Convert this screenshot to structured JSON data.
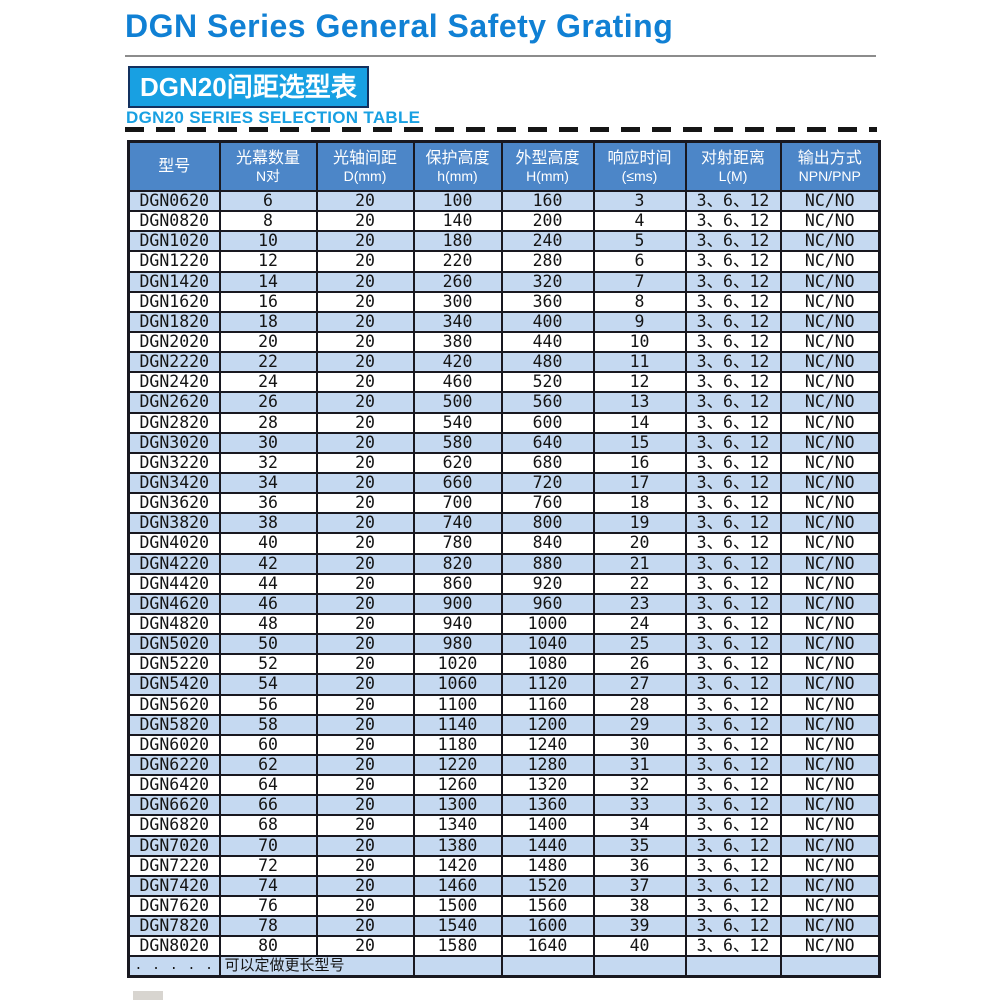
{
  "page": {
    "title": "DGN Series General Safety Grating",
    "section_badge": "DGN20间距选型表",
    "section_subtitle": "DGN20 SERIES SELECTION TABLE"
  },
  "colors": {
    "title_blue": "#1080d4",
    "badge_fill_blue": "#18a0e2",
    "badge_border_navy": "#13315f",
    "subtitle_cyan_blue": "#18a0e2",
    "table_header_blue": "#4c86c8",
    "row_alt_light_blue": "#c5d9f1",
    "border_dark": "#181820"
  },
  "table": {
    "headers": [
      {
        "line1": "型号",
        "line2": ""
      },
      {
        "line1": "光幕数量",
        "line2": "N对"
      },
      {
        "line1": "光轴间距",
        "line2": "D(mm)"
      },
      {
        "line1": "保护高度",
        "line2": "h(mm)"
      },
      {
        "line1": "外型高度",
        "line2": "H(mm)"
      },
      {
        "line1": "响应时间",
        "line2": "(≤ms)"
      },
      {
        "line1": "对射距离",
        "line2": "L(M)"
      },
      {
        "line1": "输出方式",
        "line2": "NPN/PNP"
      }
    ],
    "rows": [
      [
        "DGN0620",
        "6",
        "20",
        "100",
        "160",
        "3",
        "3、6、12",
        "NC/NO"
      ],
      [
        "DGN0820",
        "8",
        "20",
        "140",
        "200",
        "4",
        "3、6、12",
        "NC/NO"
      ],
      [
        "DGN1020",
        "10",
        "20",
        "180",
        "240",
        "5",
        "3、6、12",
        "NC/NO"
      ],
      [
        "DGN1220",
        "12",
        "20",
        "220",
        "280",
        "6",
        "3、6、12",
        "NC/NO"
      ],
      [
        "DGN1420",
        "14",
        "20",
        "260",
        "320",
        "7",
        "3、6、12",
        "NC/NO"
      ],
      [
        "DGN1620",
        "16",
        "20",
        "300",
        "360",
        "8",
        "3、6、12",
        "NC/NO"
      ],
      [
        "DGN1820",
        "18",
        "20",
        "340",
        "400",
        "9",
        "3、6、12",
        "NC/NO"
      ],
      [
        "DGN2020",
        "20",
        "20",
        "380",
        "440",
        "10",
        "3、6、12",
        "NC/NO"
      ],
      [
        "DGN2220",
        "22",
        "20",
        "420",
        "480",
        "11",
        "3、6、12",
        "NC/NO"
      ],
      [
        "DGN2420",
        "24",
        "20",
        "460",
        "520",
        "12",
        "3、6、12",
        "NC/NO"
      ],
      [
        "DGN2620",
        "26",
        "20",
        "500",
        "560",
        "13",
        "3、6、12",
        "NC/NO"
      ],
      [
        "DGN2820",
        "28",
        "20",
        "540",
        "600",
        "14",
        "3、6、12",
        "NC/NO"
      ],
      [
        "DGN3020",
        "30",
        "20",
        "580",
        "640",
        "15",
        "3、6、12",
        "NC/NO"
      ],
      [
        "DGN3220",
        "32",
        "20",
        "620",
        "680",
        "16",
        "3、6、12",
        "NC/NO"
      ],
      [
        "DGN3420",
        "34",
        "20",
        "660",
        "720",
        "17",
        "3、6、12",
        "NC/NO"
      ],
      [
        "DGN3620",
        "36",
        "20",
        "700",
        "760",
        "18",
        "3、6、12",
        "NC/NO"
      ],
      [
        "DGN3820",
        "38",
        "20",
        "740",
        "800",
        "19",
        "3、6、12",
        "NC/NO"
      ],
      [
        "DGN4020",
        "40",
        "20",
        "780",
        "840",
        "20",
        "3、6、12",
        "NC/NO"
      ],
      [
        "DGN4220",
        "42",
        "20",
        "820",
        "880",
        "21",
        "3、6、12",
        "NC/NO"
      ],
      [
        "DGN4420",
        "44",
        "20",
        "860",
        "920",
        "22",
        "3、6、12",
        "NC/NO"
      ],
      [
        "DGN4620",
        "46",
        "20",
        "900",
        "960",
        "23",
        "3、6、12",
        "NC/NO"
      ],
      [
        "DGN4820",
        "48",
        "20",
        "940",
        "1000",
        "24",
        "3、6、12",
        "NC/NO"
      ],
      [
        "DGN5020",
        "50",
        "20",
        "980",
        "1040",
        "25",
        "3、6、12",
        "NC/NO"
      ],
      [
        "DGN5220",
        "52",
        "20",
        "1020",
        "1080",
        "26",
        "3、6、12",
        "NC/NO"
      ],
      [
        "DGN5420",
        "54",
        "20",
        "1060",
        "1120",
        "27",
        "3、6、12",
        "NC/NO"
      ],
      [
        "DGN5620",
        "56",
        "20",
        "1100",
        "1160",
        "28",
        "3、6、12",
        "NC/NO"
      ],
      [
        "DGN5820",
        "58",
        "20",
        "1140",
        "1200",
        "29",
        "3、6、12",
        "NC/NO"
      ],
      [
        "DGN6020",
        "60",
        "20",
        "1180",
        "1240",
        "30",
        "3、6、12",
        "NC/NO"
      ],
      [
        "DGN6220",
        "62",
        "20",
        "1220",
        "1280",
        "31",
        "3、6、12",
        "NC/NO"
      ],
      [
        "DGN6420",
        "64",
        "20",
        "1260",
        "1320",
        "32",
        "3、6、12",
        "NC/NO"
      ],
      [
        "DGN6620",
        "66",
        "20",
        "1300",
        "1360",
        "33",
        "3、6、12",
        "NC/NO"
      ],
      [
        "DGN6820",
        "68",
        "20",
        "1340",
        "1400",
        "34",
        "3、6、12",
        "NC/NO"
      ],
      [
        "DGN7020",
        "70",
        "20",
        "1380",
        "1440",
        "35",
        "3、6、12",
        "NC/NO"
      ],
      [
        "DGN7220",
        "72",
        "20",
        "1420",
        "1480",
        "36",
        "3、6、12",
        "NC/NO"
      ],
      [
        "DGN7420",
        "74",
        "20",
        "1460",
        "1520",
        "37",
        "3、6、12",
        "NC/NO"
      ],
      [
        "DGN7620",
        "76",
        "20",
        "1500",
        "1560",
        "38",
        "3、6、12",
        "NC/NO"
      ],
      [
        "DGN7820",
        "78",
        "20",
        "1540",
        "1600",
        "39",
        "3、6、12",
        "NC/NO"
      ],
      [
        "DGN8020",
        "80",
        "20",
        "1580",
        "1640",
        "40",
        "3、6、12",
        "NC/NO"
      ]
    ],
    "footer": {
      "model_dots": ". . . . .",
      "note": "可以定做更长型号"
    }
  }
}
